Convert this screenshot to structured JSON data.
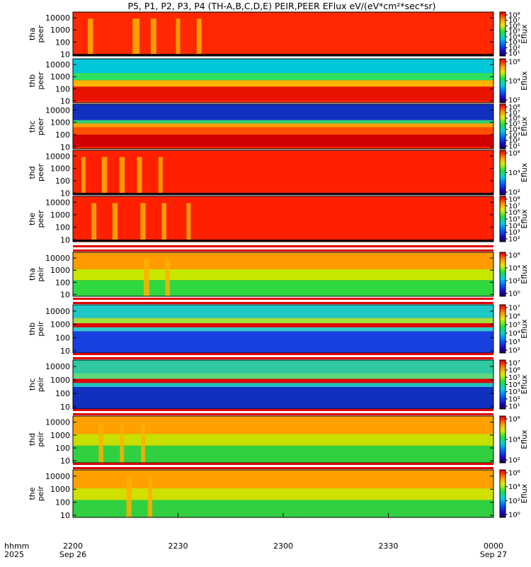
{
  "chart_data": {
    "type": "heatmap",
    "title": "P5, P1, P2, P3, P4 (TH-A,B,C,D,E) PEIR,PEER EFlux eV/(eV*cm²*sec*sr)",
    "x_axis": {
      "row1_label": "hhmm",
      "row2_label": "2025",
      "ticks": [
        {
          "hhmm": "2200",
          "date": "Sep 26",
          "minutes": 0
        },
        {
          "hhmm": "2230",
          "date": "",
          "minutes": 30
        },
        {
          "hhmm": "2300",
          "date": "",
          "minutes": 60
        },
        {
          "hhmm": "2330",
          "date": "",
          "minutes": 90
        },
        {
          "hhmm": "0000",
          "date": "Sep 27",
          "minutes": 120
        }
      ],
      "range_minutes": [
        0,
        120
      ]
    },
    "y_axis": {
      "scale": "log",
      "units": "eV",
      "ticks": [
        "10",
        "100",
        "1000",
        "10000"
      ],
      "tick_values": [
        10,
        100,
        1000,
        10000
      ],
      "range": [
        7,
        30000
      ]
    },
    "colorbar_label": "Eflux",
    "panels": [
      {
        "probe": "tha",
        "species": "peer",
        "cbar_ticks": [
          "10¹",
          "10²",
          "10³",
          "10⁴",
          "10⁵",
          "10⁶",
          "10⁷",
          "10⁸"
        ],
        "cbar_exp_range": [
          0.5,
          8.5
        ],
        "bands": [
          {
            "lo": 10,
            "hi": 30000,
            "color": "#ff2800"
          }
        ],
        "holes": [
          {
            "t": 5,
            "w": 1.5
          },
          {
            "t": 18,
            "w": 2
          },
          {
            "t": 23,
            "w": 1.6
          },
          {
            "t": 30,
            "w": 1.2
          },
          {
            "t": 36,
            "w": 1.4
          }
        ],
        "edge": true
      },
      {
        "probe": "thb",
        "species": "peer",
        "cbar_ticks": [
          "10²",
          "10⁴",
          "10⁶"
        ],
        "cbar_exp_range": [
          1,
          7
        ],
        "bands": [
          {
            "lo": 2000,
            "hi": 30000,
            "color": "#00c8d8"
          },
          {
            "lo": 500,
            "hi": 2000,
            "color": "#2ee060"
          },
          {
            "lo": 150,
            "hi": 500,
            "color": "#ffb400"
          },
          {
            "lo": 10,
            "hi": 150,
            "color": "#e81400"
          }
        ],
        "holes": [],
        "edge": false
      },
      {
        "probe": "thc",
        "species": "peer",
        "cbar_ticks": [
          "10¹",
          "10²",
          "10³",
          "10⁴",
          "10⁵",
          "10⁶",
          "10⁷",
          "10⁸"
        ],
        "cbar_exp_range": [
          0.5,
          8.5
        ],
        "bands": [
          {
            "lo": 1500,
            "hi": 30000,
            "color": "#1030c0"
          },
          {
            "lo": 800,
            "hi": 1500,
            "color": "#30d070"
          },
          {
            "lo": 400,
            "hi": 800,
            "color": "#ffa000"
          },
          {
            "lo": 100,
            "hi": 400,
            "color": "#ff5000"
          },
          {
            "lo": 10,
            "hi": 100,
            "color": "#d00000"
          }
        ],
        "holes": [],
        "edge": false
      },
      {
        "probe": "thd",
        "species": "peer",
        "cbar_ticks": [
          "10²",
          "10⁴",
          "10⁶"
        ],
        "cbar_exp_range": [
          1,
          7
        ],
        "bands": [
          {
            "lo": 10,
            "hi": 30000,
            "color": "#ff2000"
          }
        ],
        "holes": [
          {
            "t": 3,
            "w": 1.2
          },
          {
            "t": 9,
            "w": 1.5
          },
          {
            "t": 14,
            "w": 1.5
          },
          {
            "t": 19,
            "w": 1.4
          },
          {
            "t": 25,
            "w": 1.2
          }
        ],
        "edge": true
      },
      {
        "probe": "the",
        "species": "peer",
        "cbar_ticks": [
          "10²",
          "10³",
          "10⁴",
          "10⁵",
          "10⁶",
          "10⁷",
          "10⁸"
        ],
        "cbar_exp_range": [
          1.5,
          8.5
        ],
        "bands": [
          {
            "lo": 10,
            "hi": 30000,
            "color": "#ff2000"
          }
        ],
        "holes": [
          {
            "t": 6,
            "w": 1.4
          },
          {
            "t": 12,
            "w": 1.5
          },
          {
            "t": 20,
            "w": 1.5
          },
          {
            "t": 26,
            "w": 1.3
          },
          {
            "t": 33,
            "w": 1.2
          }
        ],
        "edge": true
      },
      {
        "probe": "tha",
        "species": "peir",
        "cbar_ticks": [
          "10⁰",
          "10²",
          "10⁴",
          "10⁶"
        ],
        "cbar_exp_range": [
          -0.5,
          7
        ],
        "bands": [
          {
            "lo": 1200,
            "hi": 30000,
            "color": "#ff9a00"
          },
          {
            "lo": 150,
            "hi": 1200,
            "color": "#c8e800"
          },
          {
            "lo": 7,
            "hi": 150,
            "color": "#30d840"
          }
        ],
        "holes": [
          {
            "t": 21,
            "w": 1.6
          },
          {
            "t": 27,
            "w": 1.3
          }
        ],
        "edge": false
      },
      {
        "probe": "thb",
        "species": "peir",
        "cbar_ticks": [
          "10²",
          "10³",
          "10⁴",
          "10⁵",
          "10⁶",
          "10⁷"
        ],
        "cbar_exp_range": [
          1.5,
          7.5
        ],
        "bands": [
          {
            "lo": 3000,
            "hi": 30000,
            "color": "#20c8c8"
          },
          {
            "lo": 1200,
            "hi": 3000,
            "color": "#a0e040"
          },
          {
            "lo": 600,
            "hi": 1200,
            "color": "#e00000"
          },
          {
            "lo": 300,
            "hi": 600,
            "color": "#30c8c8"
          },
          {
            "lo": 7,
            "hi": 300,
            "color": "#1840e0"
          }
        ],
        "holes": [],
        "edge": false
      },
      {
        "probe": "thc",
        "species": "peir",
        "cbar_ticks": [
          "10¹",
          "10²",
          "10³",
          "10⁴",
          "10⁵",
          "10⁶",
          "10⁷"
        ],
        "cbar_exp_range": [
          0.5,
          7.5
        ],
        "bands": [
          {
            "lo": 3000,
            "hi": 30000,
            "color": "#30c8a0"
          },
          {
            "lo": 1200,
            "hi": 3000,
            "color": "#60d880"
          },
          {
            "lo": 600,
            "hi": 1200,
            "color": "#e00000"
          },
          {
            "lo": 300,
            "hi": 600,
            "color": "#20c0c0"
          },
          {
            "lo": 7,
            "hi": 300,
            "color": "#1030c0"
          }
        ],
        "holes": [],
        "edge": false
      },
      {
        "probe": "thd",
        "species": "peir",
        "cbar_ticks": [
          "10²",
          "10⁴",
          "10⁶"
        ],
        "cbar_exp_range": [
          1,
          7
        ],
        "bands": [
          {
            "lo": 1200,
            "hi": 30000,
            "color": "#ffa000"
          },
          {
            "lo": 150,
            "hi": 1200,
            "color": "#c8e000"
          },
          {
            "lo": 7,
            "hi": 150,
            "color": "#30d040"
          }
        ],
        "holes": [
          {
            "t": 8,
            "w": 1.3
          },
          {
            "t": 14,
            "w": 1.2
          },
          {
            "t": 20,
            "w": 1.2
          }
        ],
        "edge": false
      },
      {
        "probe": "the",
        "species": "peir",
        "cbar_ticks": [
          "10⁰",
          "10²",
          "10⁴",
          "10⁶"
        ],
        "cbar_exp_range": [
          -0.5,
          7
        ],
        "bands": [
          {
            "lo": 1200,
            "hi": 30000,
            "color": "#ffa000"
          },
          {
            "lo": 150,
            "hi": 1200,
            "color": "#d0e000"
          },
          {
            "lo": 7,
            "hi": 150,
            "color": "#30d040"
          }
        ],
        "holes": [
          {
            "t": 16,
            "w": 1.5
          },
          {
            "t": 22,
            "w": 1.3
          }
        ],
        "edge": false
      }
    ]
  }
}
